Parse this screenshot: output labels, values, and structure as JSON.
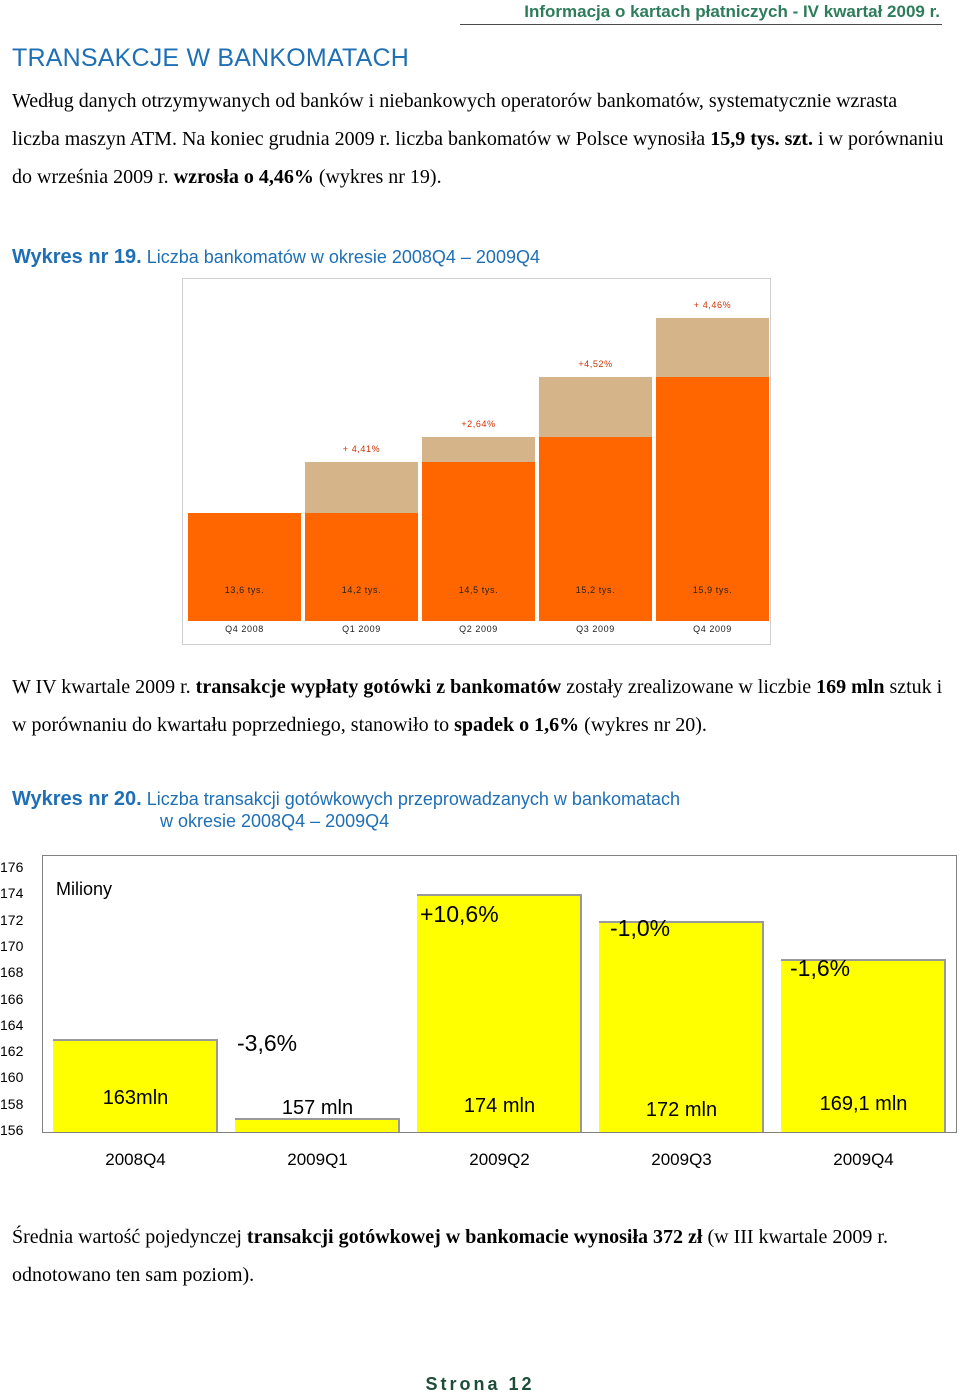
{
  "header": {
    "title": "Informacja o kartach płatniczych - IV kwartał 2009 r."
  },
  "section_title": "TRANSAKCJE W BANKOMATACH",
  "para1": {
    "t1": "Według danych otrzymywanych od banków i niebankowych operatorów bankomatów, systematycznie wzrasta liczba maszyn ATM. Na koniec grudnia 2009 r. liczba bankomatów w Polsce wynosiła ",
    "b1": "15,9 tys. szt.",
    "t2": " i w porównaniu do września 2009 r. ",
    "b2": "wzrosła o 4,46%",
    "t3": " (wykres nr 19)."
  },
  "chart19_heading": {
    "num": "Wykres nr 19.",
    "title": "Liczba bankomatów w okresie 2008Q4 – 2009Q4"
  },
  "para2": {
    "t1": "W IV kwartale 2009 r. ",
    "b1": "transakcje wypłaty gotówki z bankomatów",
    "t2": " zostały zrealizowane w liczbie ",
    "b2": "169 mln",
    "t3": " sztuk i w porównaniu do kwartału poprzedniego, stanowiło to ",
    "b3": "spadek o 1,6%",
    "t4": " (wykres nr 20)."
  },
  "chart20_heading": {
    "num": "Wykres nr 20.",
    "title": "Liczba transakcji gotówkowych przeprowadzanych w bankomatach",
    "subtitle": "w okresie 2008Q4 – 2009Q4"
  },
  "para3": {
    "t1": "Średnia wartość pojedynczej ",
    "b1": "transakcji gotówkowej w bankomacie wynosiła 372 zł",
    "t2": " (w III kwartale 2009 r. odnotowano ten sam poziom)."
  },
  "footer": {
    "page": "Strona 12"
  },
  "chart_data": [
    {
      "type": "bar",
      "title": "Liczba bankomatów w okresie 2008Q4 – 2009Q4",
      "categories": [
        "Q4 2008",
        "Q1 2009",
        "Q2 2009",
        "Q3 2009",
        "Q4 2009"
      ],
      "values": [
        13.6,
        14.2,
        14.5,
        15.2,
        15.9
      ],
      "value_labels": [
        "13,6 tys.",
        "14,2 tys.",
        "14,5 tys.",
        "15,2 tys.",
        "15,9 tys."
      ],
      "growth_labels": [
        "",
        "+ 4,41%",
        "+2,64%",
        "+4,52%",
        "+ 4,46%"
      ],
      "colors": {
        "base": "#ff6600",
        "growth": "#d6b48a"
      }
    },
    {
      "type": "bar",
      "title": "Liczba transakcji gotówkowych przeprowadzanych w bankomatach w okresie 2008Q4 – 2009Q4",
      "unit_label": "Miliony",
      "categories": [
        "2008Q4",
        "2009Q1",
        "2009Q2",
        "2009Q3",
        "2009Q4"
      ],
      "values": [
        163,
        157,
        174,
        172,
        169.1
      ],
      "value_labels": [
        "163mln",
        "157 mln",
        "174 mln",
        "172 mln",
        "169,1 mln"
      ],
      "change_labels": [
        "",
        "-3,6%",
        "+10,6%",
        "-1,0%",
        "-1,6%"
      ],
      "yticks": [
        176,
        174,
        172,
        170,
        168,
        166,
        164,
        162,
        160,
        158,
        156
      ],
      "colors": {
        "bar": "#ffff00",
        "border": "#999999"
      }
    }
  ]
}
